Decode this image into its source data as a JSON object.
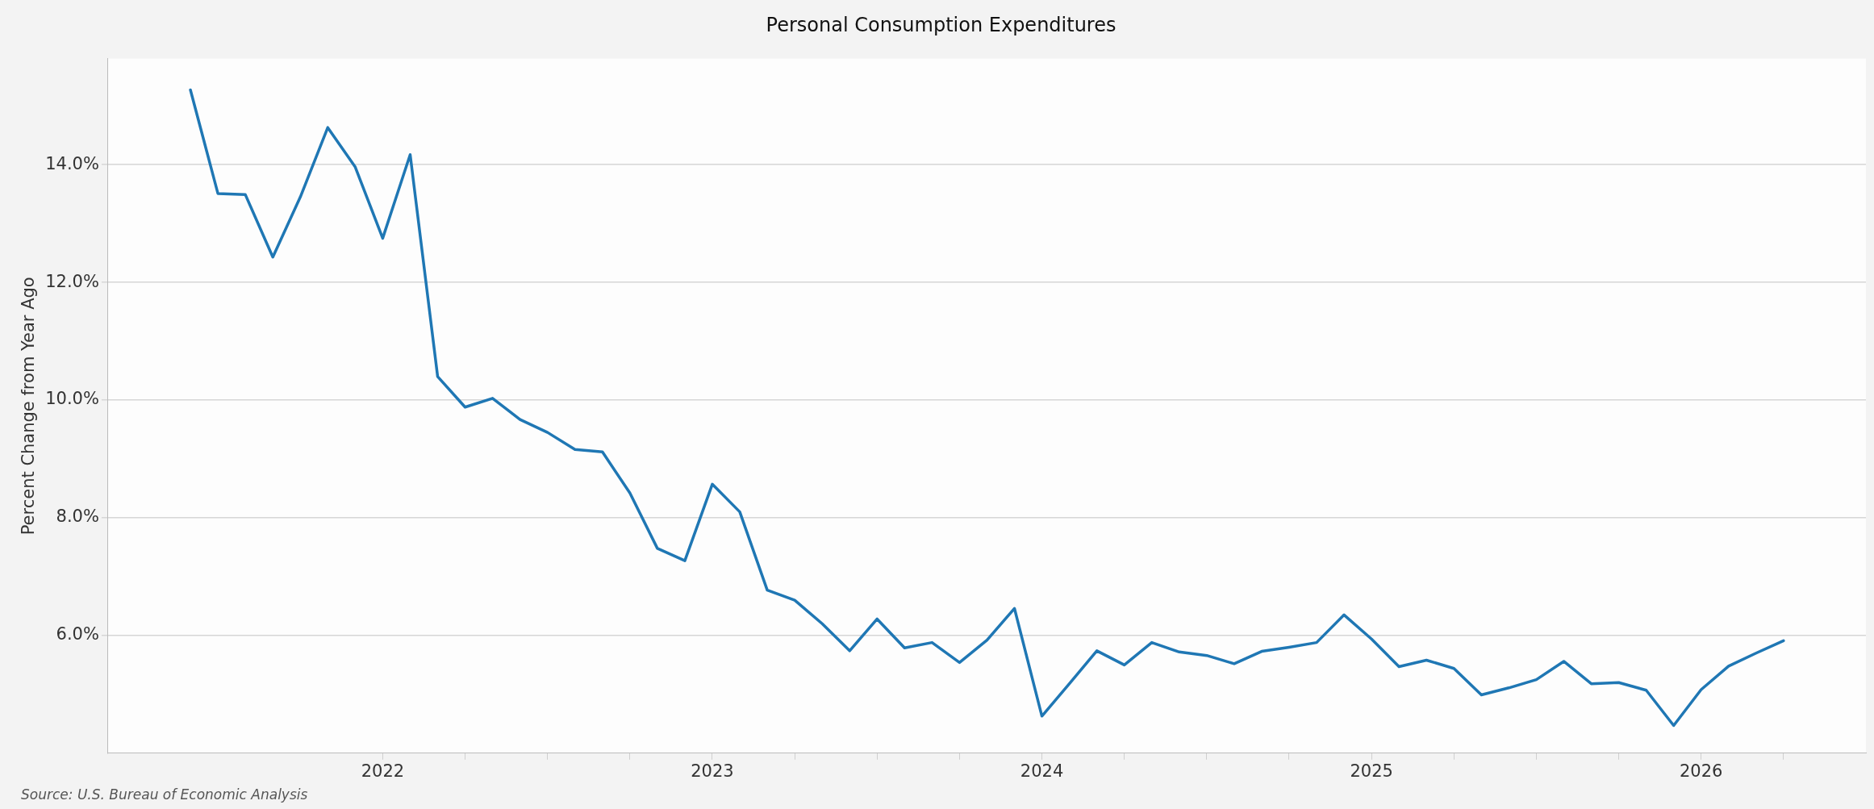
{
  "chart_data": {
    "type": "line",
    "title": "Personal Consumption Expenditures",
    "ylabel": "Percent Change from Year Ago",
    "annotations": [
      "Source: U.S. Bureau of Economic Analysis"
    ],
    "x": [
      "2021-06",
      "2021-07",
      "2021-08",
      "2021-09",
      "2021-10",
      "2021-11",
      "2021-12",
      "2022-01",
      "2022-02",
      "2022-03",
      "2022-04",
      "2022-05",
      "2022-06",
      "2022-07",
      "2022-08",
      "2022-09",
      "2022-10",
      "2022-11",
      "2022-12",
      "2023-01",
      "2023-02",
      "2023-03",
      "2023-04",
      "2023-05",
      "2023-06",
      "2023-07",
      "2023-08",
      "2023-09",
      "2023-10",
      "2023-11",
      "2023-12",
      "2024-01",
      "2024-02",
      "2024-03",
      "2024-04",
      "2024-05",
      "2024-06",
      "2024-07",
      "2024-08",
      "2024-09",
      "2024-10",
      "2024-11",
      "2024-12",
      "2025-01",
      "2025-02",
      "2025-03",
      "2025-04",
      "2025-05",
      "2025-06",
      "2025-07",
      "2025-08",
      "2025-09",
      "2025-10",
      "2025-11",
      "2025-12",
      "2026-01",
      "2026-02",
      "2026-03",
      "2026-04"
    ],
    "series": [
      {
        "color": "#1f77b4",
        "values": [
          15.27,
          13.51,
          13.49,
          12.43,
          13.45,
          14.63,
          13.96,
          12.75,
          14.17,
          10.4,
          9.88,
          10.03,
          9.67,
          9.45,
          9.16,
          9.12,
          8.42,
          7.48,
          7.27,
          8.57,
          8.1,
          6.77,
          6.6,
          6.2,
          5.74,
          6.28,
          5.79,
          5.88,
          5.54,
          5.92,
          6.46,
          4.63,
          5.18,
          5.74,
          5.5,
          5.88,
          5.72,
          5.66,
          5.52,
          5.73,
          5.8,
          5.88,
          6.35,
          5.94,
          5.47,
          5.58,
          5.44,
          4.99,
          5.11,
          5.25,
          5.56,
          5.18,
          5.2,
          5.07,
          4.47,
          5.08,
          5.48,
          5.7,
          5.91
        ]
      }
    ],
    "xlim": [
      "2021-03",
      "2026-07"
    ],
    "xticks": [
      "2022",
      {
        "value": "2022-04",
        "label": null
      },
      {
        "value": "2022-07",
        "label": null
      },
      {
        "value": "2022-10",
        "label": null
      },
      "2023",
      {
        "value": "2023-04",
        "label": null
      },
      {
        "value": "2023-07",
        "label": null
      },
      {
        "value": "2023-10",
        "label": null
      },
      "2024",
      {
        "value": "2024-04",
        "label": null
      },
      {
        "value": "2024-07",
        "label": null
      },
      {
        "value": "2024-10",
        "label": null
      },
      "2025",
      {
        "value": "2025-04",
        "label": null
      },
      {
        "value": "2025-07",
        "label": null
      },
      {
        "value": "2025-10",
        "label": null
      },
      "2026",
      {
        "value": "2026-04",
        "label": null
      }
    ],
    "ylim": [
      4.0,
      15.8
    ],
    "yticks": [
      {
        "value": 6,
        "label": "6.0%"
      },
      {
        "value": 8,
        "label": "8.0%"
      },
      {
        "value": 10,
        "label": "10.0%"
      },
      {
        "value": 12,
        "label": "12.0%"
      },
      {
        "value": 14,
        "label": "14.0%"
      }
    ],
    "grid": "y",
    "legend": false,
    "marker": "none",
    "line_style": "solid"
  }
}
